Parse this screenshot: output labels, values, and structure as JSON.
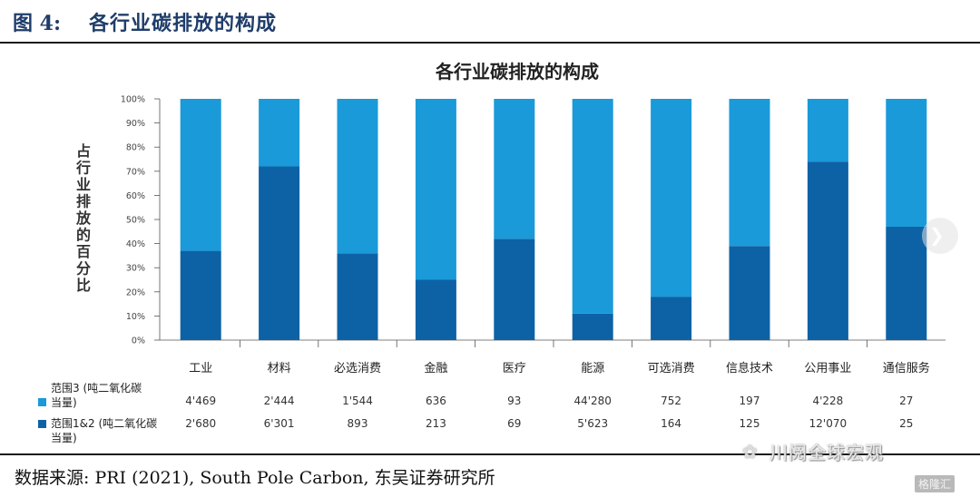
{
  "figure": {
    "label": "图 4:",
    "title": "各行业碳排放的构成",
    "source": "数据来源: PRI (2021), South Pole Carbon, 东吴证券研究所",
    "watermark": "川阅全球宏观",
    "logo_text": "格隆汇"
  },
  "colors": {
    "scope3": "#1a9ad9",
    "scope12": "#0d62a6",
    "title": "#1f3d6a"
  },
  "chart_data": {
    "type": "bar",
    "stacked": true,
    "title": "各行业碳排放的构成",
    "ylabel": "占行业排放的百分比",
    "xlabel": "",
    "ylim": [
      0,
      100
    ],
    "yticks": [
      "0%",
      "10%",
      "20%",
      "30%",
      "40%",
      "50%",
      "60%",
      "70%",
      "80%",
      "90%",
      "100%"
    ],
    "grid": false,
    "categories": [
      "工业",
      "材料",
      "必选消费",
      "金融",
      "医疗",
      "能源",
      "可选消费",
      "信息技术",
      "公用事业",
      "通信服务"
    ],
    "series": [
      {
        "name": "范围1&2 (吨二氧化碳当量)",
        "label_line1": "范围1&2 (吨二氧化碳",
        "label_line2": "当量)",
        "percent": [
          37,
          72,
          36,
          25,
          42,
          11,
          18,
          39,
          74,
          47
        ],
        "table_values": [
          "2'680",
          "6'301",
          "893",
          "213",
          "69",
          "5'623",
          "164",
          "125",
          "12'070",
          "25"
        ]
      },
      {
        "name": "范围3 (吨二氧化碳当量)",
        "label_line1": "范围3 (吨二氧化碳",
        "label_line2": "当量)",
        "percent": [
          63,
          28,
          64,
          75,
          58,
          89,
          82,
          61,
          26,
          53
        ],
        "table_values": [
          "4'469",
          "2'444",
          "1'544",
          "636",
          "93",
          "44'280",
          "752",
          "197",
          "4'228",
          "27"
        ]
      }
    ]
  }
}
